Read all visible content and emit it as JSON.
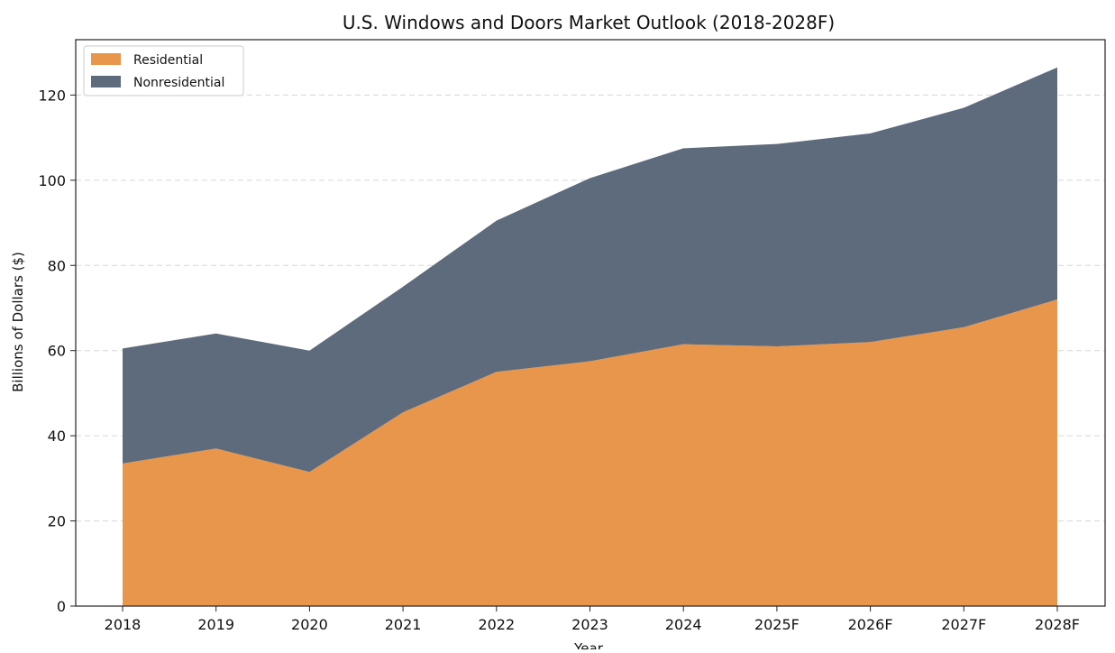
{
  "chart_data": {
    "type": "area",
    "stacked": true,
    "title": "U.S. Windows and Doors Market Outlook (2018-2028F)",
    "xlabel": "Year",
    "ylabel": "Billions of Dollars ($)",
    "categories": [
      "2018",
      "2019",
      "2020",
      "2021",
      "2022",
      "2023",
      "2024",
      "2025F",
      "2026F",
      "2027F",
      "2028F"
    ],
    "ylim": [
      0,
      133
    ],
    "yticks": [
      0,
      20,
      40,
      60,
      80,
      100,
      120
    ],
    "grid": "horizontal dashed",
    "legend_position": "top-left",
    "series": [
      {
        "name": "Residential",
        "color": "#E8964B",
        "values": [
          33.5,
          37.0,
          31.5,
          45.5,
          55.0,
          57.5,
          61.5,
          61.0,
          62.0,
          65.5,
          72.0
        ]
      },
      {
        "name": "Nonresidential",
        "color": "#5E6B7C",
        "values": [
          27.0,
          27.0,
          28.5,
          29.5,
          35.5,
          43.0,
          46.0,
          47.5,
          49.0,
          51.5,
          54.5
        ]
      }
    ]
  }
}
